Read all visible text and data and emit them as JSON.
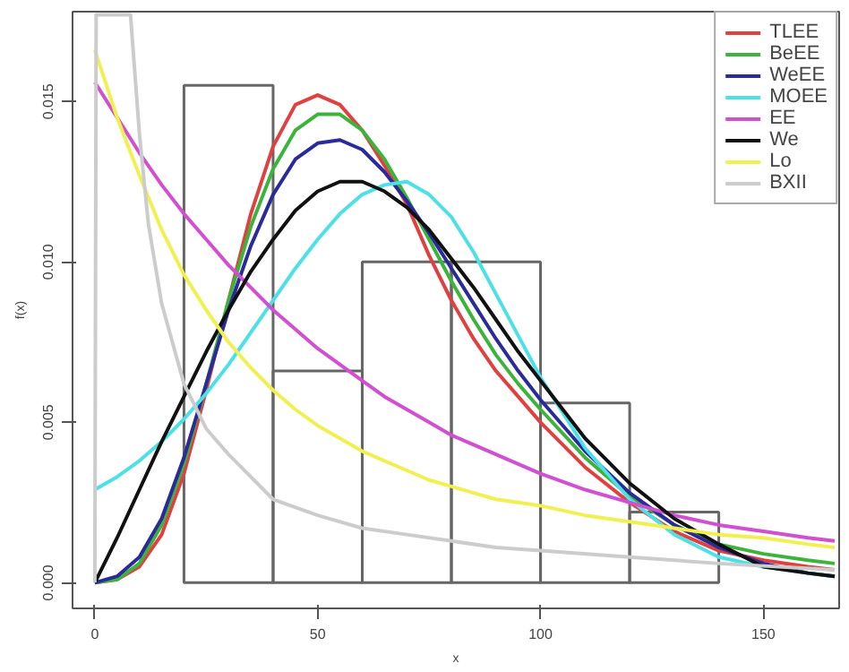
{
  "chart_data": {
    "type": "histogram",
    "xlabel": "x",
    "ylabel": "f(x)",
    "bins": [
      20,
      40,
      60,
      80,
      100,
      120,
      140
    ],
    "values": [
      0.0155,
      0.0066,
      0.01,
      0.01,
      0.0056,
      0.0022
    ],
    "color": "#666666",
    "xlim": [
      -5,
      167
    ],
    "ylim": [
      -0.0008,
      0.0178
    ],
    "xticks": [
      0,
      50,
      100,
      150
    ],
    "yticks": [
      {
        "value": 0,
        "label": "0.000"
      },
      {
        "value": 0.005,
        "label": "0.005"
      },
      {
        "value": 0.01,
        "label": "0.010"
      },
      {
        "value": 0.015,
        "label": "0.015"
      }
    ],
    "legend": "top right",
    "series": [
      {
        "type": "line",
        "name": "TLEE",
        "color": "#e04040",
        "x": [
          0,
          5,
          10,
          15,
          20,
          25,
          30,
          35,
          40,
          45,
          50,
          55,
          60,
          65,
          70,
          75,
          80,
          85,
          90,
          95,
          100,
          110,
          120,
          130,
          140,
          150,
          160,
          166
        ],
        "values": [
          0,
          0.0001,
          0.0005,
          0.0015,
          0.0034,
          0.006,
          0.0088,
          0.0115,
          0.0136,
          0.0149,
          0.0152,
          0.0149,
          0.0141,
          0.013,
          0.0118,
          0.0102,
          0.0088,
          0.0076,
          0.0066,
          0.0058,
          0.005,
          0.0036,
          0.0025,
          0.0016,
          0.001,
          0.0007,
          0.0005,
          0.0004
        ]
      },
      {
        "type": "line",
        "name": "BeEE",
        "color": "#3cb43c",
        "x": [
          0,
          5,
          10,
          15,
          20,
          25,
          30,
          35,
          40,
          45,
          50,
          55,
          60,
          65,
          70,
          75,
          80,
          85,
          90,
          95,
          100,
          110,
          120,
          130,
          140,
          150,
          160,
          166
        ],
        "values": [
          0,
          0.0001,
          0.0006,
          0.0018,
          0.0037,
          0.0062,
          0.0088,
          0.0111,
          0.0129,
          0.0141,
          0.0146,
          0.0146,
          0.0141,
          0.0132,
          0.012,
          0.0107,
          0.0094,
          0.0082,
          0.0071,
          0.0062,
          0.0054,
          0.0039,
          0.0027,
          0.0018,
          0.0012,
          0.0009,
          0.0007,
          0.0006
        ]
      },
      {
        "type": "line",
        "name": "WeEE",
        "color": "#2a2a9a",
        "x": [
          0,
          5,
          10,
          15,
          20,
          25,
          30,
          35,
          40,
          45,
          50,
          55,
          60,
          65,
          70,
          75,
          80,
          85,
          90,
          95,
          100,
          110,
          120,
          130,
          140,
          150,
          160,
          166
        ],
        "values": [
          0,
          0.0002,
          0.0008,
          0.002,
          0.0039,
          0.0062,
          0.0085,
          0.0105,
          0.0121,
          0.0132,
          0.0137,
          0.0138,
          0.0135,
          0.0128,
          0.0119,
          0.0109,
          0.0098,
          0.0087,
          0.0076,
          0.0066,
          0.0057,
          0.0041,
          0.0028,
          0.0018,
          0.0011,
          0.0006,
          0.0003,
          0.0002
        ]
      },
      {
        "type": "line",
        "name": "MOEE",
        "color": "#4de0e6",
        "x": [
          0,
          5,
          10,
          15,
          20,
          25,
          30,
          35,
          40,
          45,
          50,
          55,
          60,
          65,
          70,
          75,
          80,
          85,
          90,
          95,
          100,
          110,
          120,
          130,
          140,
          150,
          160,
          166
        ],
        "values": [
          0.0029,
          0.0033,
          0.0038,
          0.0044,
          0.0051,
          0.0059,
          0.0068,
          0.0078,
          0.0088,
          0.0098,
          0.0107,
          0.0115,
          0.0121,
          0.0124,
          0.0125,
          0.0121,
          0.0114,
          0.0103,
          0.009,
          0.0077,
          0.0064,
          0.0042,
          0.0026,
          0.0015,
          0.0008,
          0.0005,
          0.0003,
          0.0002
        ]
      },
      {
        "type": "line",
        "name": "EE",
        "color": "#d14fd1",
        "x": [
          0,
          5,
          10,
          15,
          20,
          25,
          30,
          35,
          40,
          45,
          50,
          55,
          60,
          65,
          70,
          75,
          80,
          85,
          90,
          95,
          100,
          110,
          120,
          130,
          140,
          150,
          160,
          166
        ],
        "values": [
          0.0156,
          0.0145,
          0.0134,
          0.0124,
          0.0115,
          0.0107,
          0.0099,
          0.0092,
          0.0085,
          0.0079,
          0.0073,
          0.0068,
          0.0063,
          0.0058,
          0.0054,
          0.005,
          0.0046,
          0.0043,
          0.004,
          0.0037,
          0.0034,
          0.0029,
          0.0025,
          0.0021,
          0.0018,
          0.0016,
          0.0014,
          0.0013
        ]
      },
      {
        "type": "line",
        "name": "We",
        "color": "#111111",
        "x": [
          0,
          5,
          10,
          15,
          20,
          25,
          30,
          35,
          40,
          45,
          50,
          55,
          60,
          65,
          70,
          75,
          80,
          85,
          90,
          95,
          100,
          110,
          120,
          130,
          140,
          150,
          160,
          166
        ],
        "values": [
          0,
          0.0014,
          0.0029,
          0.0044,
          0.0058,
          0.0072,
          0.0085,
          0.0097,
          0.0107,
          0.0116,
          0.0122,
          0.0125,
          0.0125,
          0.0122,
          0.0117,
          0.011,
          0.0101,
          0.0092,
          0.0082,
          0.0072,
          0.0063,
          0.0045,
          0.0031,
          0.002,
          0.0012,
          0.0005,
          0.0003,
          0.0002
        ]
      },
      {
        "type": "line",
        "name": "Lo",
        "color": "#f0f050",
        "x": [
          0,
          5,
          10,
          15,
          20,
          25,
          30,
          35,
          40,
          45,
          50,
          55,
          60,
          65,
          70,
          75,
          80,
          85,
          90,
          95,
          100,
          110,
          120,
          130,
          140,
          150,
          160,
          166
        ],
        "values": [
          0.0166,
          0.0145,
          0.0127,
          0.011,
          0.0096,
          0.0085,
          0.0075,
          0.0067,
          0.006,
          0.0054,
          0.0049,
          0.0045,
          0.0041,
          0.0038,
          0.0035,
          0.0032,
          0.003,
          0.0028,
          0.0026,
          0.0025,
          0.0024,
          0.0021,
          0.0019,
          0.0017,
          0.0015,
          0.0014,
          0.0012,
          0.0011
        ]
      },
      {
        "type": "line",
        "name": "BXII",
        "color": "#cccccc",
        "x": [
          0,
          0.3,
          8,
          10,
          12,
          15,
          20,
          25,
          30,
          40,
          50,
          60,
          70,
          80,
          90,
          100,
          120,
          140,
          166
        ],
        "values": [
          0,
          0.0177,
          0.0177,
          0.014,
          0.0112,
          0.0087,
          0.0062,
          0.0048,
          0.004,
          0.0026,
          0.0021,
          0.0017,
          0.0015,
          0.0013,
          0.0011,
          0.001,
          0.0008,
          0.0006,
          0.0004
        ]
      }
    ]
  }
}
